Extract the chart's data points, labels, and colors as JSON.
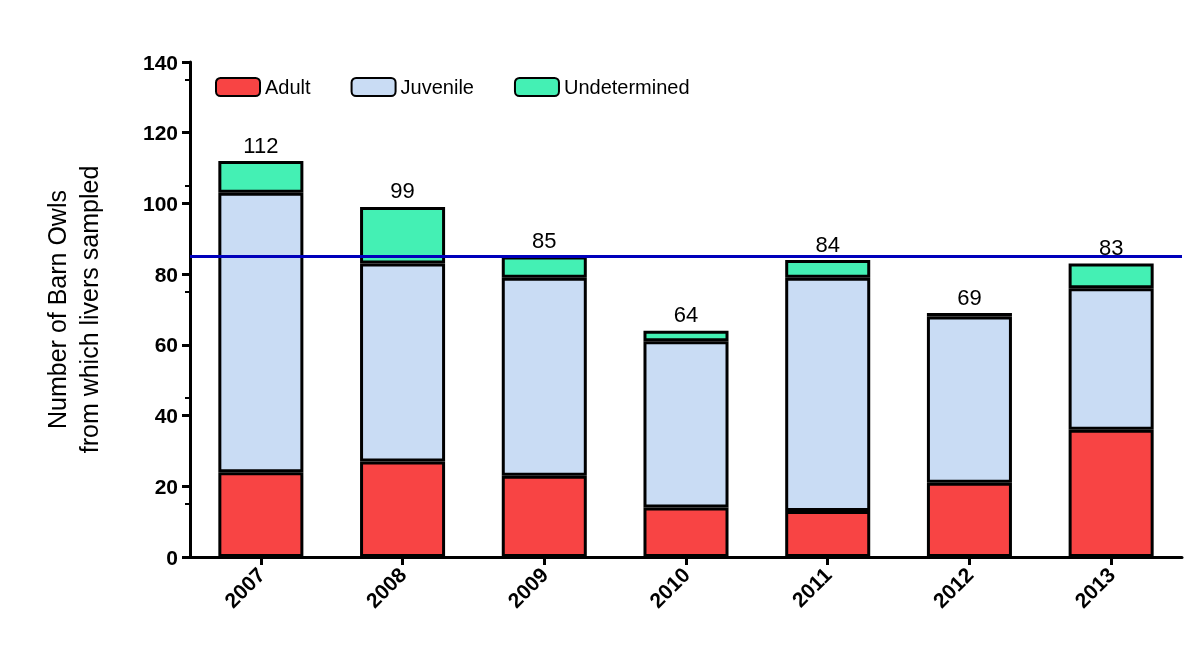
{
  "chart_data": {
    "type": "bar",
    "stacked": true,
    "ylabel": "Number of Barn Owls\nfrom which livers sampled",
    "categories": [
      "2007",
      "2008",
      "2009",
      "2010",
      "2011",
      "2012",
      "2013"
    ],
    "series": [
      {
        "name": "Adult",
        "color": "#f84444",
        "values": [
          24,
          27,
          23,
          14,
          13,
          21,
          36
        ]
      },
      {
        "name": "Juvenile",
        "color": "#c9dcf4",
        "values": [
          79,
          56,
          56,
          47,
          66,
          47,
          40
        ]
      },
      {
        "name": "Undetermined",
        "color": "#44f0b4",
        "values": [
          9,
          16,
          6,
          3,
          5,
          1,
          7
        ]
      }
    ],
    "totals": [
      "112",
      "99",
      "85",
      "64",
      "84",
      "69",
      "83"
    ],
    "ylim": [
      0,
      140
    ],
    "yticks": [
      0,
      20,
      40,
      60,
      80,
      100,
      120,
      140
    ],
    "ref_lines": [
      {
        "axis": "y",
        "value": 85,
        "color": "#0000bb",
        "line_style": "solid"
      }
    ],
    "grid": false,
    "legend": "top left"
  }
}
